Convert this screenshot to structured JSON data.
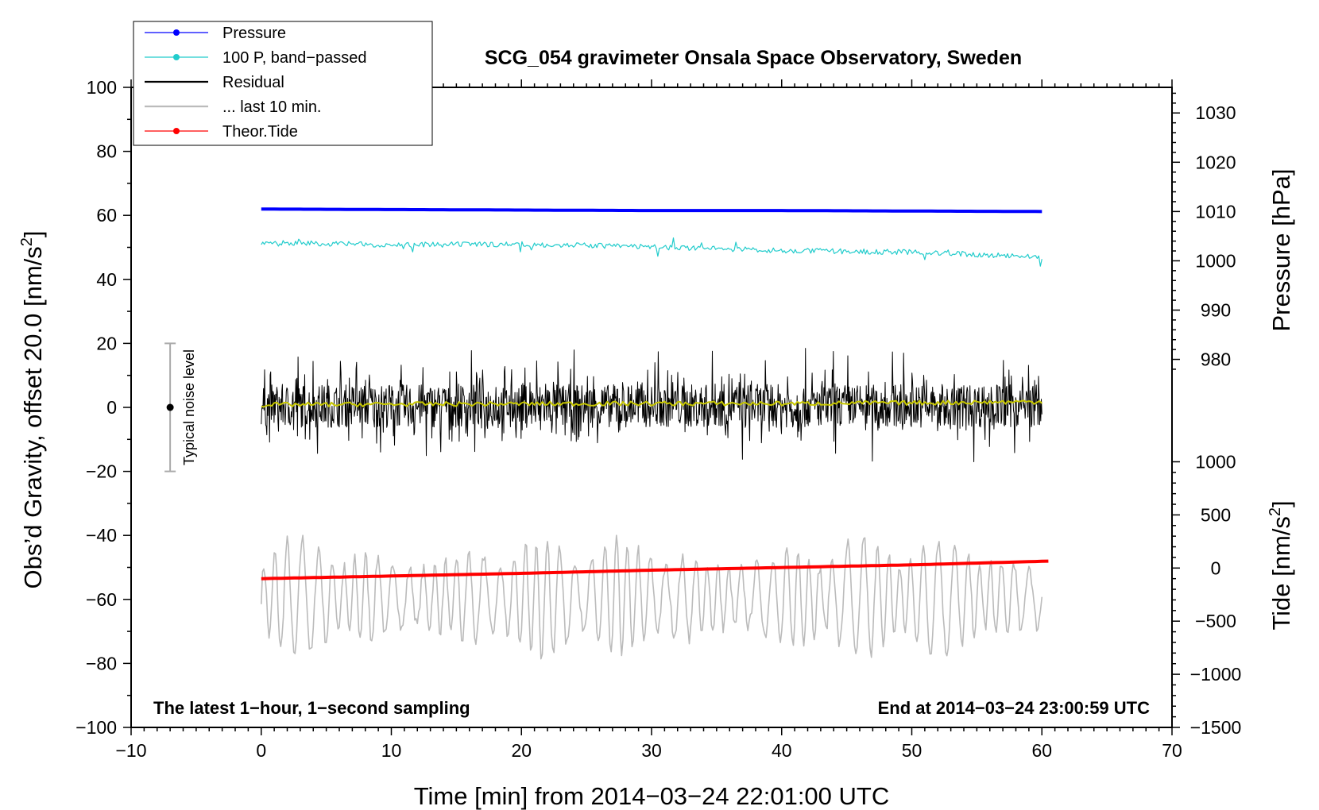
{
  "chart_data": {
    "type": "line",
    "title": "SCG_054 gravimeter Onsala Space Observatory, Sweden",
    "xlabel": "Time [min] from 2014−03−24 22:01:00 UTC",
    "ylabel": "Obs’d Gravity, offset 20.0 [nm/s",
    "ylabel_sup": "2",
    "ylabel_close": "]",
    "y2label": "Pressure [hPa]",
    "y3label": "Tide [nm/s",
    "y3label_sup": "2",
    "y3label_close": "]",
    "xlim": [
      -10,
      70
    ],
    "ylim": [
      -100,
      100
    ],
    "xticks": [
      -10,
      0,
      10,
      20,
      30,
      40,
      50,
      60,
      70
    ],
    "xtick_labels": [
      "−10",
      "0",
      "10",
      "20",
      "30",
      "40",
      "50",
      "60",
      "70"
    ],
    "yticks": [
      -100,
      -80,
      -60,
      -40,
      -20,
      0,
      20,
      40,
      60,
      80,
      100
    ],
    "ytick_labels": [
      "−100",
      "−80",
      "−60",
      "−40",
      "−20",
      "0",
      "20",
      "40",
      "60",
      "80",
      "100"
    ],
    "pressure_axis": {
      "ticks": [
        980,
        990,
        1000,
        1010,
        1020,
        1030
      ],
      "tick_labels": [
        "980",
        "990",
        "1000",
        "1010",
        "1020",
        "1030"
      ],
      "maps_to_gravity": [
        [
          980,
          15
        ],
        [
          1030,
          92
        ]
      ]
    },
    "tide_axis": {
      "ticks": [
        -1500,
        -1000,
        -500,
        0,
        500,
        1000
      ],
      "tick_labels": [
        "−1500",
        "−1000",
        "−500",
        "0",
        "500",
        "1000"
      ],
      "maps_to_gravity": [
        [
          -1500,
          -100
        ],
        [
          1000,
          -17
        ]
      ]
    },
    "legend_position": "top-left",
    "legend": [
      {
        "label": "Pressure",
        "color": "#0000ff",
        "marker": true
      },
      {
        "label": "100 P, band−passed",
        "color": "#22cccc",
        "marker": true
      },
      {
        "label": "Residual",
        "color": "#000000",
        "marker": false
      },
      {
        "label": "... last 10 min.",
        "color": "#bbbbbb",
        "marker": false
      },
      {
        "label": "Theor.Tide",
        "color": "#ff0000",
        "marker": true
      }
    ],
    "series": [
      {
        "name": "Pressure",
        "color": "#0000ff",
        "axis": "pressure",
        "x": [
          0,
          10,
          20,
          30,
          40,
          50,
          60
        ],
        "y": [
          1010.5,
          1010.4,
          1010.3,
          1010.2,
          1010.2,
          1010.1,
          1010.0
        ]
      },
      {
        "name": "100 P, band−passed",
        "color": "#22cccc",
        "axis": "gravity",
        "x": [
          0,
          10,
          20,
          30,
          40,
          50,
          60
        ],
        "y": [
          51.5,
          50.8,
          51.0,
          50.2,
          49.0,
          48.5,
          47.0
        ]
      },
      {
        "name": "Residual",
        "color": "#000000",
        "axis": "gravity",
        "x": [
          0,
          60
        ],
        "y": [
          0,
          0
        ],
        "range": [
          -24,
          24
        ]
      },
      {
        "name": "Residual (smoothed)",
        "color": "#c8c800",
        "axis": "gravity",
        "x": [
          0,
          10,
          20,
          30,
          40,
          50,
          60
        ],
        "y": [
          0.8,
          1.0,
          1.1,
          1.2,
          1.2,
          1.4,
          1.8
        ]
      },
      {
        "name": "... last 10 min.",
        "color": "#bbbbbb",
        "axis": "gravity",
        "x": [
          0,
          60
        ],
        "y": [
          -62,
          -62
        ],
        "range": [
          -79,
          -40
        ]
      },
      {
        "name": "Theor.Tide",
        "color": "#ff0000",
        "axis": "tide",
        "x": [
          0,
          10,
          20,
          30,
          40,
          50,
          60.5
        ],
        "y": [
          -100,
          -75,
          -50,
          -20,
          5,
          30,
          65
        ]
      }
    ],
    "noise_bar": {
      "label": "Typical noise level",
      "x": -7,
      "center": 0,
      "low": -20,
      "high": 20
    },
    "annotations": {
      "bottom_left": "The latest 1−hour, 1−second sampling",
      "bottom_right": "End at 2014−03−24 23:00:59 UTC"
    }
  }
}
